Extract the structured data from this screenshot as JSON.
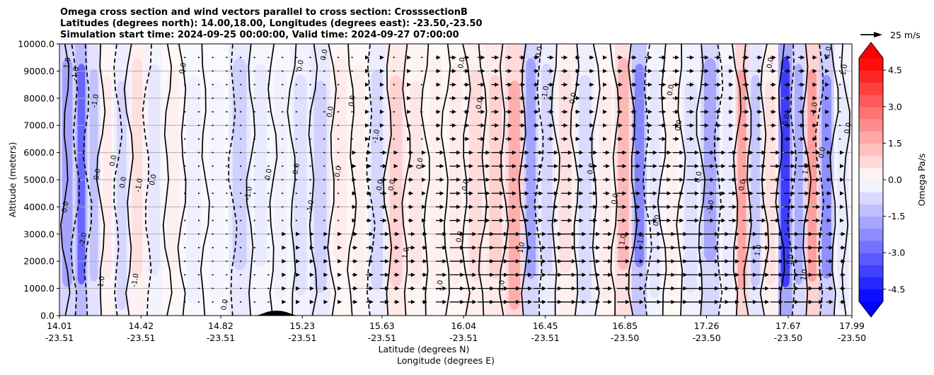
{
  "chart_data": {
    "type": "heatmap",
    "title_lines": [
      "Omega cross section and wind vectors parallel to cross section: CrosssectionB",
      "Latitudes (degrees north): 14.00,18.00, Longitudes (degrees east): -23.50,-23.50",
      "Simulation start time: 2024-09-25 00:00:00, Valid time: 2024-09-27 07:00:00"
    ],
    "ylabel": "Altitude (meters)",
    "xlabel_lines": [
      "Latitude (degrees N)",
      "Longitude (degrees E)"
    ],
    "ylim": [
      0,
      10000
    ],
    "xlim": [
      14.01,
      17.99
    ],
    "yticks": [
      "0.0",
      "1000.0",
      "2000.0",
      "3000.0",
      "4000.0",
      "5000.0",
      "6000.0",
      "7000.0",
      "8000.0",
      "9000.0",
      "10000.0"
    ],
    "xticks": [
      {
        "lat": "14.01",
        "lon": "-23.51",
        "v": 14.01
      },
      {
        "lat": "14.42",
        "lon": "-23.51",
        "v": 14.42
      },
      {
        "lat": "14.82",
        "lon": "-23.51",
        "v": 14.82
      },
      {
        "lat": "15.23",
        "lon": "-23.51",
        "v": 15.23
      },
      {
        "lat": "15.63",
        "lon": "-23.51",
        "v": 15.63
      },
      {
        "lat": "16.04",
        "lon": "-23.51",
        "v": 16.04
      },
      {
        "lat": "16.45",
        "lon": "-23.51",
        "v": 16.45
      },
      {
        "lat": "16.85",
        "lon": "-23.50",
        "v": 16.85
      },
      {
        "lat": "17.26",
        "lon": "-23.50",
        "v": 17.26
      },
      {
        "lat": "17.67",
        "lon": "-23.50",
        "v": 17.67
      },
      {
        "lat": "17.99",
        "lon": "-23.50",
        "v": 17.99
      }
    ],
    "grid": true,
    "colorbar": {
      "label": "Omega Pa/s",
      "ticks": [
        "-4.5",
        "-3.0",
        "-1.5",
        "0.0",
        "1.5",
        "3.0",
        "4.5"
      ],
      "range": [
        -5,
        5
      ],
      "low_color": "#0000ff",
      "mid_color": "#ffffff",
      "high_color": "#ff0000"
    },
    "quiver_key": "25 m/s",
    "columns": [
      {
        "x": 14.06,
        "w": -1.8
      },
      {
        "x": 14.12,
        "w": -3.0
      },
      {
        "x": 14.18,
        "w": -1.2
      },
      {
        "x": 14.25,
        "w": 0.4
      },
      {
        "x": 14.32,
        "w": -0.8
      },
      {
        "x": 14.4,
        "w": 0.6
      },
      {
        "x": 14.48,
        "w": -0.5
      },
      {
        "x": 14.58,
        "w": 0.3
      },
      {
        "x": 14.68,
        "w": -0.3
      },
      {
        "x": 14.8,
        "w": -0.2
      },
      {
        "x": 14.92,
        "w": -0.9
      },
      {
        "x": 15.02,
        "w": -0.4
      },
      {
        "x": 15.12,
        "w": -0.3
      },
      {
        "x": 15.22,
        "w": -0.6
      },
      {
        "x": 15.32,
        "w": -0.9
      },
      {
        "x": 15.42,
        "w": 0.4
      },
      {
        "x": 15.52,
        "w": 0.3
      },
      {
        "x": 15.6,
        "w": -0.8
      },
      {
        "x": 15.7,
        "w": 0.9
      },
      {
        "x": 15.8,
        "w": 0.5
      },
      {
        "x": 15.9,
        "w": 0.3
      },
      {
        "x": 16.0,
        "w": 0.4
      },
      {
        "x": 16.1,
        "w": 0.7
      },
      {
        "x": 16.2,
        "w": 0.9
      },
      {
        "x": 16.3,
        "w": 1.6
      },
      {
        "x": 16.38,
        "w": -1.8
      },
      {
        "x": 16.45,
        "w": -0.8
      },
      {
        "x": 16.55,
        "w": 0.6
      },
      {
        "x": 16.65,
        "w": -0.7
      },
      {
        "x": 16.75,
        "w": 0.4
      },
      {
        "x": 16.85,
        "w": 1.4
      },
      {
        "x": 16.92,
        "w": -2.4
      },
      {
        "x": 17.0,
        "w": -0.5
      },
      {
        "x": 17.08,
        "w": 0.3
      },
      {
        "x": 17.18,
        "w": -0.6
      },
      {
        "x": 17.28,
        "w": -1.7
      },
      {
        "x": 17.37,
        "w": -0.4
      },
      {
        "x": 17.44,
        "w": 1.8
      },
      {
        "x": 17.5,
        "w": -1.1
      },
      {
        "x": 17.58,
        "w": 0.6
      },
      {
        "x": 17.66,
        "w": -3.8
      },
      {
        "x": 17.72,
        "w": -1.6
      },
      {
        "x": 17.79,
        "w": 1.9
      },
      {
        "x": 17.86,
        "w": -2.2
      },
      {
        "x": 17.94,
        "w": -0.4
      }
    ],
    "contour_lines": [
      {
        "x": 14.04,
        "style": "solid"
      },
      {
        "x": 14.09,
        "style": "dashed"
      },
      {
        "x": 14.15,
        "style": "dashed"
      },
      {
        "x": 14.22,
        "style": "solid"
      },
      {
        "x": 14.3,
        "style": "dashed"
      },
      {
        "x": 14.36,
        "style": "solid"
      },
      {
        "x": 14.45,
        "style": "dashed"
      },
      {
        "x": 14.55,
        "style": "solid"
      },
      {
        "x": 14.63,
        "style": "solid"
      },
      {
        "x": 14.74,
        "style": "solid"
      },
      {
        "x": 14.88,
        "style": "dashed"
      },
      {
        "x": 14.97,
        "style": "solid"
      },
      {
        "x": 15.08,
        "style": "solid"
      },
      {
        "x": 15.18,
        "style": "solid"
      },
      {
        "x": 15.28,
        "style": "solid"
      },
      {
        "x": 15.38,
        "style": "solid"
      },
      {
        "x": 15.48,
        "style": "solid"
      },
      {
        "x": 15.57,
        "style": "dashed"
      },
      {
        "x": 15.66,
        "style": "solid"
      },
      {
        "x": 15.75,
        "style": "solid"
      },
      {
        "x": 15.85,
        "style": "solid"
      },
      {
        "x": 15.95,
        "style": "solid"
      },
      {
        "x": 16.05,
        "style": "solid"
      },
      {
        "x": 16.14,
        "style": "solid"
      },
      {
        "x": 16.24,
        "style": "solid"
      },
      {
        "x": 16.34,
        "style": "solid"
      },
      {
        "x": 16.42,
        "style": "dashed"
      },
      {
        "x": 16.5,
        "style": "solid"
      },
      {
        "x": 16.6,
        "style": "solid"
      },
      {
        "x": 16.7,
        "style": "solid"
      },
      {
        "x": 16.8,
        "style": "solid"
      },
      {
        "x": 16.89,
        "style": "solid"
      },
      {
        "x": 16.96,
        "style": "dashed"
      },
      {
        "x": 17.04,
        "style": "solid"
      },
      {
        "x": 17.13,
        "style": "solid"
      },
      {
        "x": 17.23,
        "style": "solid"
      },
      {
        "x": 17.32,
        "style": "dashed"
      },
      {
        "x": 17.41,
        "style": "solid"
      },
      {
        "x": 17.47,
        "style": "solid"
      },
      {
        "x": 17.55,
        "style": "solid"
      },
      {
        "x": 17.63,
        "style": "solid"
      },
      {
        "x": 17.69,
        "style": "dashed"
      },
      {
        "x": 17.76,
        "style": "solid"
      },
      {
        "x": 17.83,
        "style": "dashed"
      },
      {
        "x": 17.9,
        "style": "solid"
      },
      {
        "x": 17.96,
        "style": "solid"
      }
    ],
    "contour_labels": [
      {
        "x": 14.05,
        "y": 9300,
        "t": "1.0"
      },
      {
        "x": 14.09,
        "y": 8900,
        "t": "-1.0"
      },
      {
        "x": 14.04,
        "y": 4000,
        "t": "0.0"
      },
      {
        "x": 14.13,
        "y": 2800,
        "t": "-2.0"
      },
      {
        "x": 14.19,
        "y": 7900,
        "t": "-1.0"
      },
      {
        "x": 14.2,
        "y": 5200,
        "t": "0.0"
      },
      {
        "x": 14.22,
        "y": 1200,
        "t": "-1.0"
      },
      {
        "x": 14.28,
        "y": 5700,
        "t": "0.0"
      },
      {
        "x": 14.33,
        "y": 4900,
        "t": "0.0"
      },
      {
        "x": 14.39,
        "y": 1300,
        "t": "-1.0"
      },
      {
        "x": 14.41,
        "y": 4800,
        "t": "-1.0"
      },
      {
        "x": 14.48,
        "y": 5000,
        "t": "0.0"
      },
      {
        "x": 14.63,
        "y": 9100,
        "t": "0.0"
      },
      {
        "x": 14.84,
        "y": 400,
        "t": "0.0"
      },
      {
        "x": 14.96,
        "y": 4500,
        "t": "-1.0"
      },
      {
        "x": 15.06,
        "y": 5200,
        "t": "0.0"
      },
      {
        "x": 15.2,
        "y": 5400,
        "t": "0.0"
      },
      {
        "x": 15.22,
        "y": 9200,
        "t": "0.0"
      },
      {
        "x": 15.34,
        "y": 9600,
        "t": "0.0"
      },
      {
        "x": 15.37,
        "y": 7500,
        "t": "0.0"
      },
      {
        "x": 15.27,
        "y": 4000,
        "t": "-1.0"
      },
      {
        "x": 15.41,
        "y": 5300,
        "t": "0.0"
      },
      {
        "x": 15.48,
        "y": 7900,
        "t": "0.0"
      },
      {
        "x": 15.6,
        "y": 6600,
        "t": "-1.0"
      },
      {
        "x": 15.62,
        "y": 4800,
        "t": "0.0"
      },
      {
        "x": 15.68,
        "y": 4800,
        "t": "0.0"
      },
      {
        "x": 15.75,
        "y": 2300,
        "t": "1.0"
      },
      {
        "x": 15.82,
        "y": 5600,
        "t": "0.0"
      },
      {
        "x": 15.92,
        "y": 1100,
        "t": "1.0"
      },
      {
        "x": 16.03,
        "y": 9300,
        "t": "0.0"
      },
      {
        "x": 16.05,
        "y": 4800,
        "t": "0.0"
      },
      {
        "x": 16.12,
        "y": 7800,
        "t": "0.0"
      },
      {
        "x": 16.02,
        "y": 2900,
        "t": "0.0"
      },
      {
        "x": 16.23,
        "y": 1100,
        "t": "1.0"
      },
      {
        "x": 16.33,
        "y": 2500,
        "t": "1.0"
      },
      {
        "x": 16.42,
        "y": 9700,
        "t": "0.0"
      },
      {
        "x": 16.45,
        "y": 8200,
        "t": "-1.0"
      },
      {
        "x": 16.59,
        "y": 8000,
        "t": "0.0"
      },
      {
        "x": 16.68,
        "y": 5400,
        "t": "0.0"
      },
      {
        "x": 16.8,
        "y": 4300,
        "t": "0.0"
      },
      {
        "x": 16.84,
        "y": 2800,
        "t": "1.0"
      },
      {
        "x": 16.93,
        "y": 2800,
        "t": "-1.0"
      },
      {
        "x": 17.01,
        "y": 3500,
        "t": "0.0"
      },
      {
        "x": 17.08,
        "y": 8300,
        "t": "0.0"
      },
      {
        "x": 17.12,
        "y": 7000,
        "t": "0.0"
      },
      {
        "x": 17.22,
        "y": 5100,
        "t": "0.0"
      },
      {
        "x": 17.28,
        "y": 4000,
        "t": "-1.0"
      },
      {
        "x": 17.44,
        "y": 4800,
        "t": "0.0"
      },
      {
        "x": 17.52,
        "y": 2400,
        "t": "1.0"
      },
      {
        "x": 17.58,
        "y": 9300,
        "t": "0.0"
      },
      {
        "x": 17.66,
        "y": 7200,
        "t": "0.0"
      },
      {
        "x": 17.68,
        "y": 2000,
        "t": "-1.0"
      },
      {
        "x": 17.75,
        "y": 1500,
        "t": "1.0"
      },
      {
        "x": 17.76,
        "y": 5400,
        "t": "1.0"
      },
      {
        "x": 17.8,
        "y": 7600,
        "t": "-1.0"
      },
      {
        "x": 17.84,
        "y": 6000,
        "t": "0.0"
      },
      {
        "x": 17.87,
        "y": 9700,
        "t": "1.0"
      },
      {
        "x": 17.95,
        "y": 9000,
        "t": "-1.0"
      },
      {
        "x": 17.97,
        "y": 6900,
        "t": "0.0"
      }
    ],
    "wind_columns": [
      {
        "x": 14.64,
        "s": 0.1
      },
      {
        "x": 14.71,
        "s": 0.1
      },
      {
        "x": 14.78,
        "s": 0.1
      },
      {
        "x": 14.85,
        "s": 0.1
      },
      {
        "x": 14.92,
        "s": 0.1
      },
      {
        "x": 14.99,
        "s": 0.1
      },
      {
        "x": 15.06,
        "s": 0.1
      },
      {
        "x": 15.13,
        "s": 0.2
      },
      {
        "x": 15.2,
        "s": 0.2
      },
      {
        "x": 15.27,
        "s": 0.2
      },
      {
        "x": 15.34,
        "s": 0.2
      },
      {
        "x": 15.41,
        "s": 0.2
      },
      {
        "x": 15.48,
        "s": 0.3
      },
      {
        "x": 15.55,
        "s": 0.4
      },
      {
        "x": 15.62,
        "s": 0.5
      },
      {
        "x": 15.69,
        "s": 0.3
      },
      {
        "x": 15.76,
        "s": 0.4
      },
      {
        "x": 15.83,
        "s": 0.3
      },
      {
        "x": 15.9,
        "s": 0.6
      },
      {
        "x": 15.97,
        "s": 0.8
      },
      {
        "x": 16.04,
        "s": 0.7
      },
      {
        "x": 16.11,
        "s": 0.9
      },
      {
        "x": 16.18,
        "s": 0.9
      },
      {
        "x": 16.25,
        "s": 0.8
      },
      {
        "x": 16.32,
        "s": 0.7
      },
      {
        "x": 16.39,
        "s": 0.7
      },
      {
        "x": 16.46,
        "s": 0.8
      },
      {
        "x": 16.53,
        "s": 0.8
      },
      {
        "x": 16.6,
        "s": 0.6
      },
      {
        "x": 16.67,
        "s": 0.6
      },
      {
        "x": 16.74,
        "s": 0.5
      },
      {
        "x": 16.81,
        "s": 0.7
      },
      {
        "x": 16.88,
        "s": 0.7
      },
      {
        "x": 16.95,
        "s": 0.9
      },
      {
        "x": 17.02,
        "s": 0.9
      },
      {
        "x": 17.09,
        "s": 0.8
      },
      {
        "x": 17.16,
        "s": 0.9
      },
      {
        "x": 17.23,
        "s": 1.0
      },
      {
        "x": 17.3,
        "s": 0.8
      },
      {
        "x": 17.37,
        "s": 0.6
      },
      {
        "x": 17.44,
        "s": 0.8
      },
      {
        "x": 17.51,
        "s": 0.7
      },
      {
        "x": 17.58,
        "s": 0.7
      },
      {
        "x": 17.65,
        "s": 0.8
      },
      {
        "x": 17.72,
        "s": 0.8
      },
      {
        "x": 17.79,
        "s": 0.6
      },
      {
        "x": 17.86,
        "s": 0.4
      },
      {
        "x": 17.93,
        "s": 0.3
      }
    ],
    "terrain": {
      "x_center": 15.1,
      "half_width": 0.12,
      "height": 180
    }
  }
}
